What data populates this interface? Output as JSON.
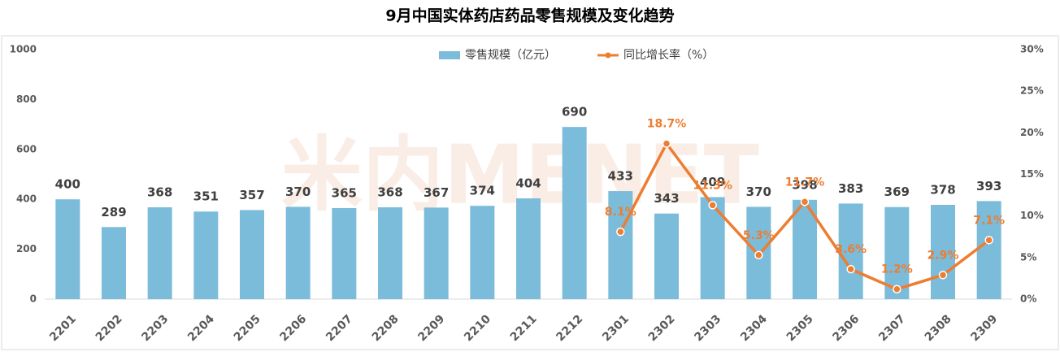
{
  "chart_data": {
    "type": "bar_line",
    "title": "9月中国实体药店药品零售规模及变化趋势",
    "watermark": "米内MENET",
    "categories": [
      "2201",
      "2202",
      "2203",
      "2204",
      "2205",
      "2206",
      "2207",
      "2208",
      "2209",
      "2210",
      "2211",
      "2212",
      "2301",
      "2302",
      "2303",
      "2304",
      "2305",
      "2306",
      "2307",
      "2308",
      "2309"
    ],
    "series": [
      {
        "name": "零售规模（亿元）",
        "type": "bar",
        "color": "#7bbcdb",
        "values": [
          400,
          289,
          368,
          351,
          357,
          370,
          365,
          368,
          367,
          374,
          404,
          690,
          433,
          343,
          409,
          370,
          398,
          383,
          369,
          378,
          393
        ]
      },
      {
        "name": "同比增长率（%）",
        "type": "line",
        "axis": "y2",
        "color": "#ed7d31",
        "values": [
          null,
          null,
          null,
          null,
          null,
          null,
          null,
          null,
          null,
          null,
          null,
          null,
          8.1,
          18.7,
          11.3,
          5.3,
          11.7,
          3.6,
          1.2,
          2.9,
          7.1
        ],
        "value_labels": [
          null,
          null,
          null,
          null,
          null,
          null,
          null,
          null,
          null,
          null,
          null,
          null,
          "8.1%",
          "18.7%",
          "11.3%",
          "5.3%",
          "11.7%",
          "3.6%",
          "1.2%",
          "2.9%",
          "7.1%"
        ]
      }
    ],
    "ylim": [
      0,
      1000
    ],
    "yticks": [
      0,
      200,
      400,
      600,
      800,
      1000
    ],
    "y2lim": [
      0,
      30
    ],
    "y2ticks": [
      {
        "value": 0,
        "label": "0%"
      },
      {
        "value": 5,
        "label": "5%"
      },
      {
        "value": 10,
        "label": "10%"
      },
      {
        "value": 15,
        "label": "15%"
      },
      {
        "value": 20,
        "label": "20%"
      },
      {
        "value": 25,
        "label": "25%"
      },
      {
        "value": 30,
        "label": "30%"
      }
    ],
    "grid": false,
    "legend": "top"
  }
}
